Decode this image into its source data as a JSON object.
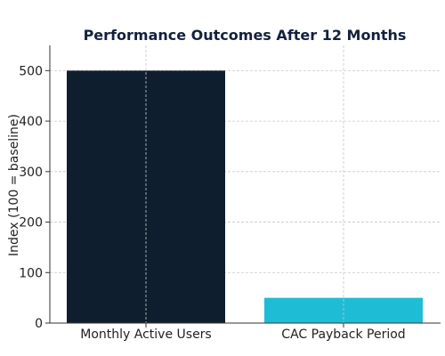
{
  "chart_data": {
    "type": "bar",
    "title": "Performance Outcomes After 12 Months",
    "xlabel": "",
    "ylabel": "Index (100 = baseline)",
    "categories": [
      "Monthly Active Users",
      "CAC Payback Period"
    ],
    "values": [
      500,
      50
    ],
    "colors": [
      "#0f1e2e",
      "#1fbcd6"
    ],
    "ylim": [
      0,
      550
    ],
    "yticks": [
      0,
      100,
      200,
      300,
      400,
      500
    ],
    "grid": true
  }
}
